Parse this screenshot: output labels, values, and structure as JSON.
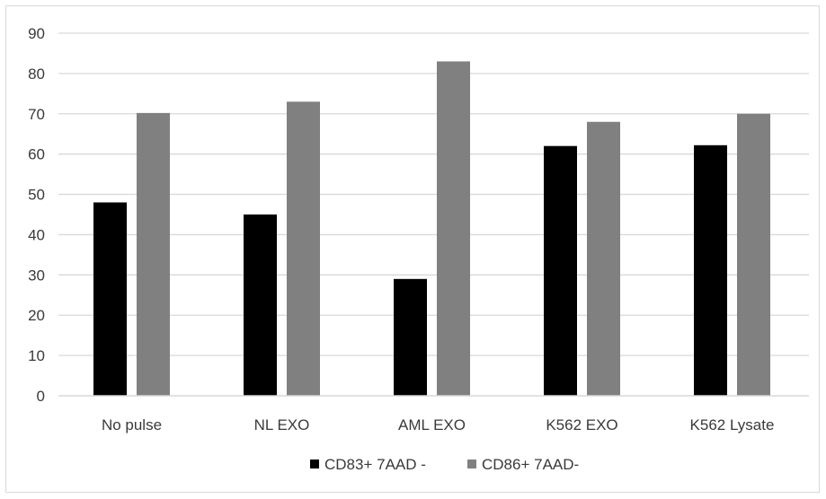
{
  "chart_data": {
    "type": "bar",
    "categories": [
      "No pulse",
      "NL EXO",
      "AML EXO",
      "K562 EXO",
      "K562 Lysate"
    ],
    "series": [
      {
        "name": "CD83+ 7AAD -",
        "values": [
          48,
          45,
          29,
          62,
          62.2
        ],
        "color": "#000000"
      },
      {
        "name": "CD86+ 7AAD-",
        "values": [
          70.2,
          73,
          83,
          68,
          70
        ],
        "color": "#808080"
      }
    ],
    "title": "",
    "xlabel": "",
    "ylabel": "",
    "ylim": [
      0,
      90
    ],
    "yticks": [
      0,
      10,
      20,
      30,
      40,
      50,
      60,
      70,
      80,
      90
    ],
    "grid": true,
    "gridColor": "#d9d9d9",
    "legend": "bottom-center"
  }
}
